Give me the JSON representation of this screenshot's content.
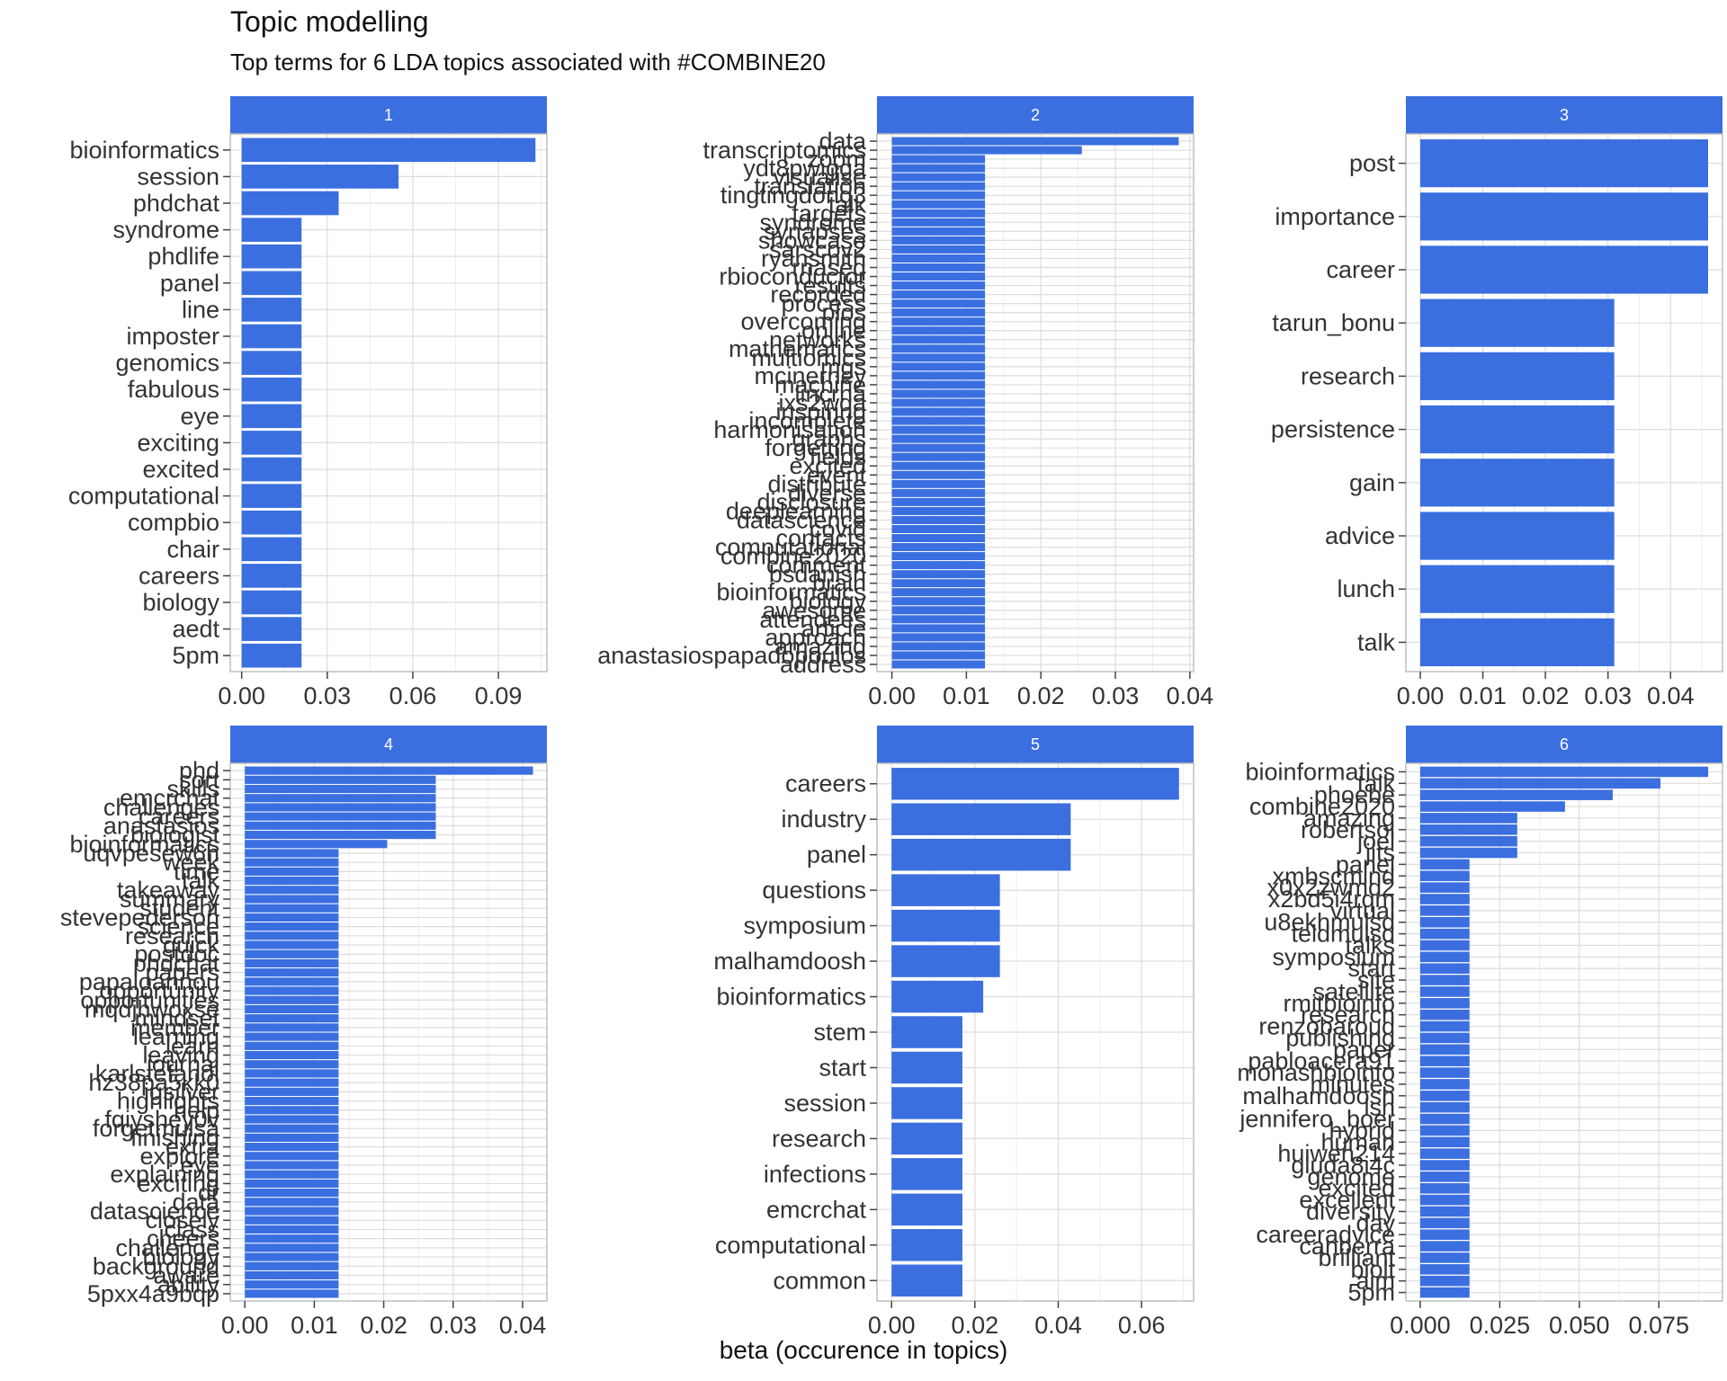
{
  "chart_data": {
    "type": "bar",
    "title": "Topic modelling",
    "subtitle": "Top terms for 6 LDA topics associated with #COMBINE20",
    "xlabel": "beta (occurence in topics)",
    "ylabel": "",
    "orientation": "horizontal",
    "bar_color": "#3b6fe0",
    "strip_color": "#3b6fe0",
    "grid": true,
    "facets": [
      {
        "label": "1",
        "xlim": [
          -0.004,
          0.107
        ],
        "ticks": [
          0,
          0.03,
          0.06,
          0.09
        ],
        "tick_labels": [
          "0.00",
          "0.03",
          "0.06",
          "0.09"
        ],
        "categories": [
          "bioinformatics",
          "session",
          "phdchat",
          "syndrome",
          "phdlife",
          "panel",
          "line",
          "imposter",
          "genomics",
          "fabulous",
          "eye",
          "exciting",
          "excited",
          "computational",
          "compbio",
          "chair",
          "careers",
          "biology",
          "aedt",
          "5pm"
        ],
        "values": [
          0.103,
          0.055,
          0.034,
          0.021,
          0.021,
          0.021,
          0.021,
          0.021,
          0.021,
          0.021,
          0.021,
          0.021,
          0.021,
          0.021,
          0.021,
          0.021,
          0.021,
          0.021,
          0.021,
          0.021
        ]
      },
      {
        "label": "2",
        "xlim": [
          -0.002,
          0.0405
        ],
        "ticks": [
          0,
          0.01,
          0.02,
          0.03,
          0.04
        ],
        "tick_labels": [
          "0.00",
          "0.01",
          "0.02",
          "0.03",
          "0.04"
        ],
        "categories": [
          "data",
          "transcriptomics",
          "zoom",
          "ydt8pwigga",
          "visualise",
          "translation",
          "tingtingdong3",
          "talk",
          "targets",
          "syndrome",
          "synapses",
          "showcase",
          "sarscov2",
          "ryansmith",
          "rnaseq",
          "rbioconductor",
          "results",
          "recorded",
          "process",
          "plos",
          "overcoming",
          "online",
          "networks",
          "mathematics",
          "multiomics",
          "mgs",
          "mcinerney",
          "machine",
          "lincrna",
          "ixs2wqa",
          "inspiring",
          "incomplete",
          "harmonisation",
          "graphs",
          "forgetting",
          "fields",
          "excited",
          "event",
          "distribute",
          "diverse",
          "disclosure",
          "deeplearning",
          "datascience",
          "covid",
          "contacts",
          "computational",
          "combine2020",
          "comment",
          "bsdanish",
          "brain",
          "bioinformatics",
          "biology",
          "awesome",
          "attendees",
          "article",
          "approach",
          "amazing",
          "anastasiospapadopoulos",
          "address"
        ],
        "values": [
          0.0385,
          0.0255,
          0.0125,
          0.0125,
          0.0125,
          0.0125,
          0.0125,
          0.0125,
          0.0125,
          0.0125,
          0.0125,
          0.0125,
          0.0125,
          0.0125,
          0.0125,
          0.0125,
          0.0125,
          0.0125,
          0.0125,
          0.0125,
          0.0125,
          0.0125,
          0.0125,
          0.0125,
          0.0125,
          0.0125,
          0.0125,
          0.0125,
          0.0125,
          0.0125,
          0.0125,
          0.0125,
          0.0125,
          0.0125,
          0.0125,
          0.0125,
          0.0125,
          0.0125,
          0.0125,
          0.0125,
          0.0125,
          0.0125,
          0.0125,
          0.0125,
          0.0125,
          0.0125,
          0.0125,
          0.0125,
          0.0125,
          0.0125,
          0.0125,
          0.0125,
          0.0125,
          0.0125,
          0.0125,
          0.0125,
          0.0125,
          0.0125,
          0.0125
        ]
      },
      {
        "label": "3",
        "xlim": [
          -0.0023,
          0.0483
        ],
        "ticks": [
          0,
          0.01,
          0.02,
          0.03,
          0.04
        ],
        "tick_labels": [
          "0.00",
          "0.01",
          "0.02",
          "0.03",
          "0.04"
        ],
        "categories": [
          "post",
          "importance",
          "career",
          "tarun_bonu",
          "research",
          "persistence",
          "gain",
          "advice",
          "lunch",
          "talk"
        ],
        "values": [
          0.046,
          0.046,
          0.046,
          0.031,
          0.031,
          0.031,
          0.031,
          0.031,
          0.031,
          0.031
        ]
      },
      {
        "label": "4",
        "xlim": [
          -0.0021,
          0.0435
        ],
        "ticks": [
          0,
          0.01,
          0.02,
          0.03,
          0.04
        ],
        "tick_labels": [
          "0.00",
          "0.01",
          "0.02",
          "0.03",
          "0.04"
        ],
        "categories": [
          "phd",
          "sort",
          "skills",
          "emcrchat",
          "challenges",
          "careers",
          "anastasios",
          "biologist",
          "bioinformatics",
          "uqvpesew6h",
          "week",
          "time",
          "talk",
          "takeaway",
          "summary",
          "student",
          "stevepederson",
          "science",
          "research",
          "quick",
          "postdoc",
          "phdchat",
          "papers",
          "papaloannou",
          "opportunity",
          "opportunities",
          "mqdjhwoxse",
          "mindset",
          "member",
          "learning",
          "learn",
          "leaving",
          "journal",
          "karlstefanoi",
          "hz38pa5kk0",
          "igsilver",
          "highlights",
          "help",
          "fqiyshey0v",
          "forgetmulsa",
          "finishing",
          "extra",
          "explore",
          "eye",
          "explaining",
          "exciting",
          "dr",
          "data",
          "datascience",
          "closely",
          "class",
          "cheers",
          "challenge",
          "biology",
          "background",
          "aware",
          "ability",
          "5pxx4a9bqp"
        ],
        "values": [
          0.0415,
          0.0275,
          0.0275,
          0.0275,
          0.0275,
          0.0275,
          0.0275,
          0.0275,
          0.0205,
          0.0135,
          0.0135,
          0.0135,
          0.0135,
          0.0135,
          0.0135,
          0.0135,
          0.0135,
          0.0135,
          0.0135,
          0.0135,
          0.0135,
          0.0135,
          0.0135,
          0.0135,
          0.0135,
          0.0135,
          0.0135,
          0.0135,
          0.0135,
          0.0135,
          0.0135,
          0.0135,
          0.0135,
          0.0135,
          0.0135,
          0.0135,
          0.0135,
          0.0135,
          0.0135,
          0.0135,
          0.0135,
          0.0135,
          0.0135,
          0.0135,
          0.0135,
          0.0135,
          0.0135,
          0.0135,
          0.0135,
          0.0135,
          0.0135,
          0.0135,
          0.0135,
          0.0135,
          0.0135,
          0.0135,
          0.0135,
          0.0135
        ]
      },
      {
        "label": "5",
        "xlim": [
          -0.0035,
          0.0725
        ],
        "ticks": [
          0,
          0.02,
          0.04,
          0.06
        ],
        "tick_labels": [
          "0.00",
          "0.02",
          "0.04",
          "0.06"
        ],
        "categories": [
          "careers",
          "industry",
          "panel",
          "questions",
          "symposium",
          "malhamdoosh",
          "bioinformatics",
          "stem",
          "start",
          "session",
          "research",
          "infections",
          "emcrchat",
          "computational",
          "common"
        ],
        "values": [
          0.069,
          0.043,
          0.043,
          0.026,
          0.026,
          0.026,
          0.022,
          0.017,
          0.017,
          0.017,
          0.017,
          0.017,
          0.017,
          0.017,
          0.017
        ]
      },
      {
        "label": "6",
        "xlim": [
          -0.0045,
          0.095
        ],
        "ticks": [
          0,
          0.025,
          0.05,
          0.075
        ],
        "tick_labels": [
          "0.000",
          "0.025",
          "0.050",
          "0.075"
        ],
        "categories": [
          "bioinformatics",
          "talk",
          "phoebe",
          "combine2020",
          "amazing",
          "robertsol",
          "joel",
          "jits",
          "panel",
          "xmbscmind",
          "x0x2zwmd2",
          "x2bd5i4rqm",
          "virtual",
          "u8ekhmulsd",
          "teldmulsd",
          "talks",
          "symposium",
          "start",
          "site",
          "satellite",
          "rmitbioinfo",
          "research",
          "renzobaroud",
          "publishing",
          "paper",
          "pabloacera91",
          "monashbioinfo",
          "minutes",
          "malhamdoosh",
          "lsh",
          "jennifero_boer",
          "hybrid",
          "human",
          "huiwen214",
          "gluda8i4c",
          "genome",
          "excited",
          "excellent",
          "diversity",
          "day",
          "careeradvice",
          "canberra",
          "brilliant",
          "biolt",
          "aim",
          "5pm"
        ],
        "values": [
          0.0905,
          0.0755,
          0.0605,
          0.0455,
          0.0305,
          0.0305,
          0.0305,
          0.0305,
          0.0155,
          0.0155,
          0.0155,
          0.0155,
          0.0155,
          0.0155,
          0.0155,
          0.0155,
          0.0155,
          0.0155,
          0.0155,
          0.0155,
          0.0155,
          0.0155,
          0.0155,
          0.0155,
          0.0155,
          0.0155,
          0.0155,
          0.0155,
          0.0155,
          0.0155,
          0.0155,
          0.0155,
          0.0155,
          0.0155,
          0.0155,
          0.0155,
          0.0155,
          0.0155,
          0.0155,
          0.0155,
          0.0155,
          0.0155,
          0.0155,
          0.0155,
          0.0155,
          0.0155
        ]
      }
    ]
  }
}
